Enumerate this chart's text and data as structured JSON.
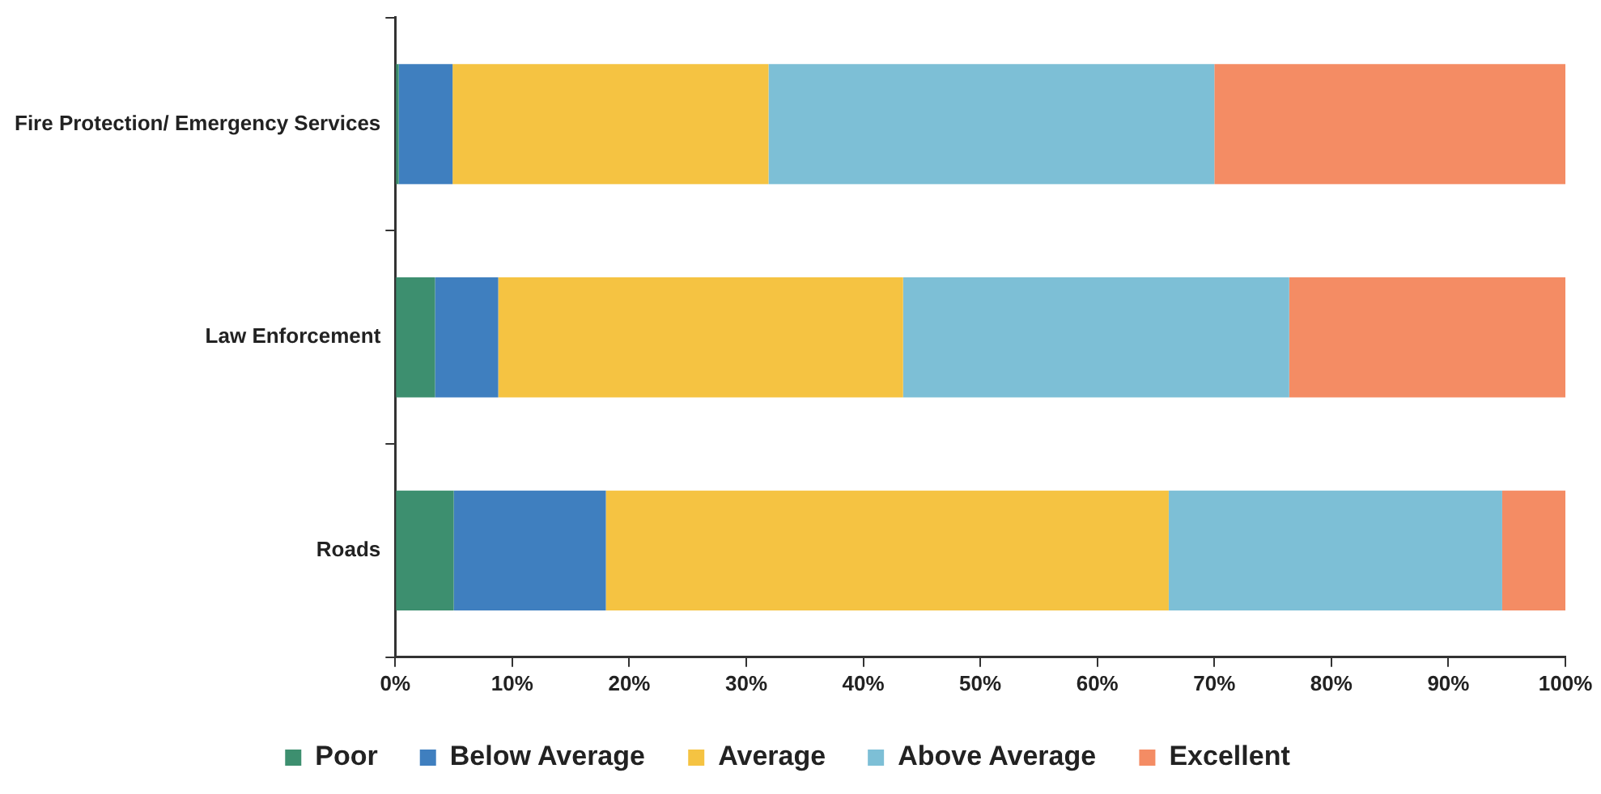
{
  "chart_data": {
    "type": "bar",
    "orientation": "horizontal",
    "stacked": true,
    "categories": [
      "Fire Protection/ Emergency Services",
      "Law Enforcement",
      "Roads"
    ],
    "series": [
      {
        "name": "Poor",
        "color": "#3d8f6f",
        "values": [
          0.3,
          3.4,
          5.0
        ]
      },
      {
        "name": "Below Average",
        "color": "#3f7fbf",
        "values": [
          4.6,
          5.4,
          13.0
        ]
      },
      {
        "name": "Average",
        "color": "#f5c342",
        "values": [
          27.0,
          34.6,
          48.1
        ]
      },
      {
        "name": "Above Average",
        "color": "#7dbfd6",
        "values": [
          38.1,
          33.0,
          28.5
        ]
      },
      {
        "name": "Excellent",
        "color": "#f48c64",
        "values": [
          30.0,
          23.6,
          5.4
        ]
      }
    ],
    "xlim": [
      0,
      100
    ],
    "xticks": [
      {
        "value": 0,
        "label": "0%"
      },
      {
        "value": 10,
        "label": "10%"
      },
      {
        "value": 20,
        "label": "20%"
      },
      {
        "value": 30,
        "label": "30%"
      },
      {
        "value": 40,
        "label": "40%"
      },
      {
        "value": 50,
        "label": "50%"
      },
      {
        "value": 60,
        "label": "60%"
      },
      {
        "value": 70,
        "label": "70%"
      },
      {
        "value": 80,
        "label": "80%"
      },
      {
        "value": 90,
        "label": "90%"
      },
      {
        "value": 100,
        "label": "100%"
      }
    ],
    "grid": false,
    "legend": "bottom"
  }
}
